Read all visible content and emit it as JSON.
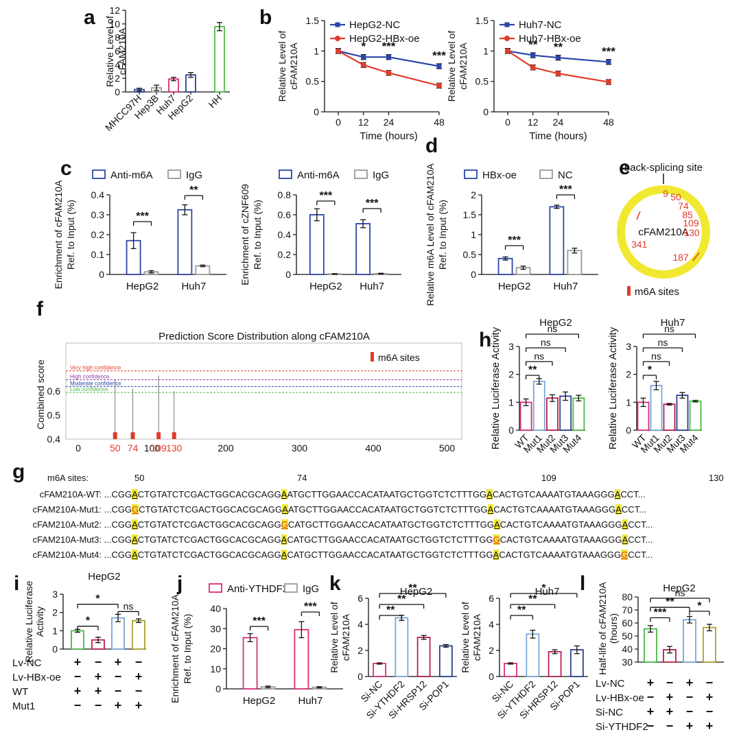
{
  "colors": {
    "blue": "#2b45a8",
    "red": "#e23b2a",
    "pink": "#d62d79",
    "green": "#48b848",
    "gray": "#9a9a9a",
    "lightblue": "#7aa6d6",
    "crimson": "#b81e4b",
    "olive": "#a8a030",
    "yellow": "#f0e930",
    "navy": "#2b3f91",
    "hhgreen": "#55b84a"
  },
  "panels": {
    "a": "a",
    "b": "b",
    "c": "c",
    "d": "d",
    "e": "e",
    "f": "f",
    "g": "g",
    "h": "h",
    "i": "i",
    "j": "j",
    "k": "k",
    "l": "l"
  },
  "chart_data": [
    {
      "id": "a",
      "type": "bar",
      "ylabel": "Relative Level of cFAM210A",
      "ylim": [
        0,
        12
      ],
      "yticks": [
        0,
        2,
        4,
        6,
        8,
        10,
        12
      ],
      "categories": [
        "MHCC97H",
        "Hep3B",
        "Huh7",
        "HepG2",
        "HH"
      ],
      "values": [
        0.35,
        0.6,
        1.9,
        2.5,
        9.6
      ],
      "errors": [
        0.2,
        0.4,
        0.25,
        0.35,
        0.6
      ]
    },
    {
      "id": "b1",
      "type": "line",
      "xlabel": "Time (hours)",
      "ylabel": "Relative Level of cFAM210A",
      "x": [
        0,
        12,
        24,
        48
      ],
      "ylim": [
        0,
        1.5
      ],
      "yticks": [
        0.0,
        0.5,
        1.0,
        1.5
      ],
      "series": [
        {
          "name": "HepG2-NC",
          "values": [
            1.0,
            0.9,
            0.9,
            0.75
          ]
        },
        {
          "name": "HepG2-HBx-oe",
          "values": [
            1.0,
            0.77,
            0.64,
            0.43
          ]
        }
      ],
      "sig": [
        "*",
        "***",
        "***"
      ]
    },
    {
      "id": "b2",
      "type": "line",
      "xlabel": "Time (hours)",
      "ylabel": "Relative Level of cFAM210A",
      "x": [
        0,
        12,
        24,
        48
      ],
      "ylim": [
        0,
        1.5
      ],
      "yticks": [
        0.0,
        0.5,
        1.0,
        1.5
      ],
      "series": [
        {
          "name": "Huh7-NC",
          "values": [
            1.0,
            0.93,
            0.89,
            0.82
          ]
        },
        {
          "name": "Huh7-HBx-oe",
          "values": [
            1.0,
            0.73,
            0.63,
            0.49
          ]
        }
      ],
      "sig": [
        "**",
        "**",
        "***"
      ]
    },
    {
      "id": "c1",
      "type": "bar",
      "ylabel": "Enrichment of cFAM210A Ref. to Input (%)",
      "ylim": [
        0,
        0.4
      ],
      "yticks": [
        0.0,
        0.1,
        0.2,
        0.3,
        0.4
      ],
      "categories": [
        "HepG2",
        "Huh7"
      ],
      "series": [
        {
          "name": "Anti-m6A",
          "values": [
            0.17,
            0.325
          ]
        },
        {
          "name": "IgG",
          "values": [
            0.013,
            0.043
          ]
        }
      ],
      "sig": [
        "***",
        "**"
      ]
    },
    {
      "id": "c2",
      "type": "bar",
      "ylabel": "Enrichment of cZNF609 Ref. to Input (%)",
      "ylim": [
        0,
        0.8
      ],
      "yticks": [
        0.0,
        0.2,
        0.4,
        0.6,
        0.8
      ],
      "categories": [
        "HepG2",
        "Huh7"
      ],
      "series": [
        {
          "name": "Anti-m6A",
          "values": [
            0.6,
            0.51
          ]
        },
        {
          "name": "IgG",
          "values": [
            0.005,
            0.008
          ]
        }
      ],
      "sig": [
        "***",
        "***"
      ]
    },
    {
      "id": "d",
      "type": "bar",
      "ylabel": "Relative m6A Level of cFAM210A Ref. to Input (%)",
      "ylim": [
        0,
        2.0
      ],
      "yticks": [
        0.0,
        0.5,
        1.0,
        1.5,
        2.0
      ],
      "categories": [
        "HepG2",
        "Huh7"
      ],
      "series": [
        {
          "name": "HBx-oe",
          "values": [
            0.4,
            1.7
          ]
        },
        {
          "name": "NC",
          "values": [
            0.17,
            0.6
          ]
        }
      ],
      "sig": [
        "***",
        "***"
      ]
    },
    {
      "id": "f",
      "type": "scatter",
      "title": "Prediction Score Distribution along cFAM210A",
      "ylabel": "Combined score",
      "xlim": [
        0,
        520
      ],
      "ylim": [
        0.4,
        0.8
      ],
      "yticks": [
        0.4,
        0.5,
        0.6
      ],
      "xticks": [
        0,
        100,
        200,
        300,
        400,
        500
      ],
      "sites": [
        50,
        74,
        109,
        130
      ],
      "scores": [
        0.65,
        0.61,
        0.665,
        0.6
      ],
      "legend": "m6A sites",
      "thresholds": [
        {
          "label": "Very high confidence",
          "value": 0.684
        },
        {
          "label": "High confidence",
          "value": 0.647
        },
        {
          "label": "Moderate confidence",
          "value": 0.619
        },
        {
          "label": "Low confidence",
          "value": 0.594
        }
      ]
    },
    {
      "id": "h1",
      "type": "bar",
      "title": "HepG2",
      "ylabel": "Relative Luciferase Activity",
      "ylim": [
        0,
        3
      ],
      "yticks": [
        0,
        1,
        2,
        3
      ],
      "categories": [
        "WT",
        "Mut1",
        "Mut2",
        "Mut3",
        "Mut4"
      ],
      "values": [
        1.0,
        1.75,
        1.15,
        1.22,
        1.15
      ],
      "errors": [
        0.12,
        0.1,
        0.12,
        0.15,
        0.1
      ],
      "sig": [
        "**",
        "ns",
        "ns",
        "ns"
      ]
    },
    {
      "id": "h2",
      "type": "bar",
      "title": "Huh7",
      "ylabel": "Relative Luciferase Activity",
      "ylim": [
        0,
        3
      ],
      "yticks": [
        0,
        1,
        2,
        3
      ],
      "categories": [
        "WT",
        "Mut1",
        "Mut2",
        "Mut3",
        "Mut4"
      ],
      "values": [
        1.0,
        1.6,
        0.93,
        1.25,
        1.04
      ],
      "errors": [
        0.15,
        0.15,
        0.03,
        0.1,
        0.03
      ],
      "sig": [
        "*",
        "ns",
        "ns",
        "ns"
      ]
    },
    {
      "id": "i",
      "type": "bar",
      "title": "HepG2",
      "ylabel": "Relative Luciferase Activity",
      "ylim": [
        0,
        3
      ],
      "yticks": [
        0,
        1,
        2,
        3
      ],
      "values": [
        1.0,
        0.5,
        1.7,
        1.55
      ],
      "errors": [
        0.08,
        0.15,
        0.2,
        0.1
      ],
      "sig": [
        "*",
        "*",
        "ns"
      ],
      "conditions": [
        {
          "label": "Lv-NC",
          "signs": [
            "+",
            "−",
            "+",
            "−"
          ]
        },
        {
          "label": "Lv-HBx-oe",
          "signs": [
            "−",
            "+",
            "−",
            "+"
          ]
        },
        {
          "label": "WT",
          "signs": [
            "+",
            "+",
            "−",
            "−"
          ]
        },
        {
          "label": "Mut1",
          "signs": [
            "−",
            "−",
            "+",
            "+"
          ]
        }
      ]
    },
    {
      "id": "j",
      "type": "bar",
      "ylabel": "Enrichment of cFAM210A Ref. to Input (%)",
      "ylim": [
        0,
        40
      ],
      "yticks": [
        0,
        10,
        20,
        30,
        40
      ],
      "categories": [
        "HepG2",
        "Huh7"
      ],
      "series": [
        {
          "name": "Anti-YTHDF2",
          "values": [
            25.5,
            29.5
          ]
        },
        {
          "name": "IgG",
          "values": [
            1.0,
            0.8
          ]
        }
      ],
      "sig": [
        "***",
        "***"
      ]
    },
    {
      "id": "k1",
      "type": "bar",
      "title": "HepG2",
      "ylabel": "Relative Level of cFAM210A",
      "ylim": [
        0,
        6
      ],
      "yticks": [
        0,
        2,
        4,
        6
      ],
      "categories": [
        "Si-NC",
        "Si-YTHDF2",
        "Si-HRSP12",
        "Si-POP1"
      ],
      "values": [
        1.0,
        4.5,
        3.0,
        2.35
      ],
      "errors": [
        0.05,
        0.2,
        0.15,
        0.1
      ],
      "sig": [
        "**",
        "**",
        "**"
      ]
    },
    {
      "id": "k2",
      "type": "bar",
      "title": "Huh7",
      "ylabel": "Relative Level of cFAM210A",
      "ylim": [
        0,
        6
      ],
      "yticks": [
        0,
        2,
        4,
        6
      ],
      "categories": [
        "Si-NC",
        "Si-YTHDF2",
        "Si-HRSP12",
        "Si-POP1"
      ],
      "values": [
        1.0,
        3.25,
        1.9,
        2.05
      ],
      "errors": [
        0.05,
        0.3,
        0.15,
        0.3
      ],
      "sig": [
        "**",
        "**",
        "*"
      ]
    },
    {
      "id": "l",
      "type": "bar",
      "title": "HepG2",
      "ylabel": "Half-life of cFAM210A (hours)",
      "ylim": [
        30,
        80
      ],
      "yticks": [
        30,
        40,
        50,
        60,
        70,
        80
      ],
      "values": [
        55.5,
        39.5,
        62.5,
        56.5
      ],
      "errors": [
        2.5,
        2.5,
        2.5,
        2.5
      ],
      "sig": [
        "***",
        "**",
        "ns",
        "*"
      ],
      "conditions": [
        {
          "label": "Lv-NC",
          "signs": [
            "+",
            "−",
            "+",
            "−"
          ]
        },
        {
          "label": "Lv-HBx-oe",
          "signs": [
            "−",
            "+",
            "−",
            "+"
          ]
        },
        {
          "label": "Si-NC",
          "signs": [
            "+",
            "+",
            "−",
            "−"
          ]
        },
        {
          "label": "Si-YTHDF2",
          "signs": [
            "−",
            "−",
            "+",
            "+"
          ]
        }
      ]
    }
  ],
  "circ": {
    "top_label": "back-splicing site",
    "center_label": "cFAM210A",
    "sites": [
      "9",
      "50",
      "74",
      "85",
      "109",
      "130",
      "187",
      "341"
    ],
    "legend": "m6A sites"
  },
  "seq": {
    "header": "m6A sites:",
    "positions": [
      "50",
      "74",
      "109",
      "130"
    ],
    "rows": [
      {
        "label": "cFAM210A-WT:",
        "parts": [
          " ...CGG",
          "A",
          "CTGTATCTCGACTGGCACGCAGG",
          "A",
          "ATGCTTGGAACCACATAATGCTGGTCTCTTTGG",
          "A",
          "CACTGTCAAAATGTAAAGGG",
          "A",
          "CCT..."
        ],
        "mut": -1
      },
      {
        "label": "cFAM210A-Mut1:",
        "parts": [
          " ...CGG",
          "G",
          "CTGTATCTCGACTGGCACGCAGG",
          "A",
          "ATGCTTGGAACCACATAATGCTGGTCTCTTTGG",
          "A",
          "CACTGTCAAAATGTAAAGGG",
          "A",
          "CCT..."
        ],
        "mut": 1
      },
      {
        "label": "cFAM210A-Mut2:",
        "parts": [
          " ...CGG",
          "A",
          "CTGTATCTCGACTGGCACGCAGG",
          "G",
          "CATGCTTGGAACCACATAATGCTGGTCTCTTTGG",
          "A",
          "CACTGTCAAAATGTAAAGGG",
          "A",
          "CCT..."
        ],
        "mut": 3
      },
      {
        "label": "cFAM210A-Mut3:",
        "parts": [
          " ...CGG",
          "A",
          "CTGTATCTCGACTGGCACGCAGG",
          "A",
          "CATGCTTGGAACCACATAATGCTGGTCTCTTTGG",
          "G",
          "CACTGTCAAAATGTAAAGGG",
          "A",
          "CCT..."
        ],
        "mut": 5
      },
      {
        "label": "cFAM210A-Mut4:",
        "parts": [
          " ...CGG",
          "A",
          "CTGTATCTCGACTGGCACGCAGG",
          "A",
          "CATGCTTGGAACCACATAATGCTGGTCTCTTTGG",
          "A",
          "CACTGTCAAAATGTAAAGGG",
          "G",
          "CCT..."
        ],
        "mut": 7
      }
    ]
  }
}
